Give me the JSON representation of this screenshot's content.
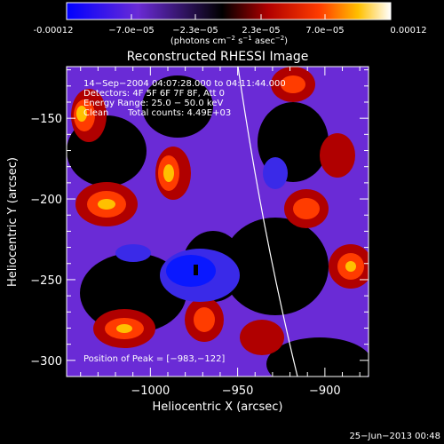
{
  "colorbar": {
    "ticks": [
      "-0.00012",
      "−7.0e−05",
      "−2.3e−05",
      "2.3e−05",
      "7.0e−05",
      "0.00012"
    ],
    "unit_label": "(photons cm",
    "unit_exp1": "−2",
    "unit_mid": " s",
    "unit_exp2": "−1",
    "unit_end": " asec",
    "unit_exp3": "−2",
    "unit_close": ")"
  },
  "chart_data": {
    "type": "heatmap",
    "title": "Reconstructed RHESSI Image",
    "xlabel": "Heliocentric X (arcsec)",
    "ylabel": "Heliocentric Y (arcsec)",
    "xlim": [
      -1048,
      -875
    ],
    "ylim": [
      -310,
      -118
    ],
    "x_ticks": [
      -1000,
      -950,
      -900
    ],
    "x_tick_labels": [
      "−1000",
      "−950",
      "−900"
    ],
    "y_ticks": [
      -150,
      -200,
      -250,
      -300
    ],
    "y_tick_labels": [
      "−150",
      "−200",
      "−250",
      "−300"
    ],
    "color_range": [
      -0.00012,
      0.00012
    ],
    "colors": [
      "#0000ff",
      "#6a2bd6",
      "#000000",
      "#b00000",
      "#ff3c00",
      "#ffc000",
      "#ffffff"
    ],
    "peak_position": [
      -983,
      -122
    ],
    "annotations": {
      "time_range": "14−Sep−2004 04:07:28.000 to 04:11:44.000",
      "detectors": "Detectors: 4F 5F 6F 7F 8F, Att 0",
      "energy_range": "Energy Range: 25.0 − 50.0 keV",
      "method": "Clean",
      "total_counts": "Total counts: 4.49E+03",
      "peak": "Position of Peak = [−983,−122]"
    }
  },
  "footer": {
    "date": "25−Jun−2013 00:48"
  }
}
